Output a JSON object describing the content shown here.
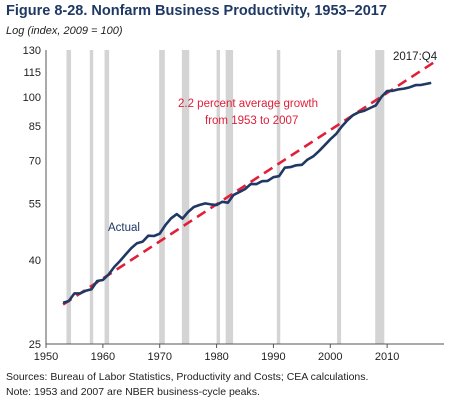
{
  "header": {
    "title": "Figure 8-28. Nonfarm Business Productivity, 1953–2017",
    "subtitle": "Log (index, 2009 = 100)"
  },
  "notes": {
    "source": "Sources: Bureau of Labor Statistics, Productivity and Costs; CEA calculations.",
    "note": "Note: 1953 and 2007 are NBER business-cycle peaks."
  },
  "chart_data": {
    "type": "line",
    "title": "Figure 8-28. Nonfarm Business Productivity, 1953–2017",
    "ylabel": "Log (index, 2009 = 100)",
    "xlabel": "",
    "yscale": "log",
    "xlim": [
      1950,
      2020
    ],
    "ylim": [
      25,
      130
    ],
    "x_ticks": [
      1950,
      1960,
      1970,
      1980,
      1990,
      2000,
      2010
    ],
    "y_ticks": [
      25,
      40,
      55,
      70,
      85,
      100,
      115,
      130
    ],
    "grid": false,
    "colors": {
      "actual": "#1f3864",
      "trend": "#e0203a",
      "recession": "#d4d4d4"
    },
    "recessions": [
      [
        1953.6,
        1954.4
      ],
      [
        1957.7,
        1958.3
      ],
      [
        1960.3,
        1961.1
      ],
      [
        1969.9,
        1970.9
      ],
      [
        1973.9,
        1975.2
      ],
      [
        1980.0,
        1980.6
      ],
      [
        1981.6,
        1982.9
      ],
      [
        1990.6,
        1991.2
      ],
      [
        2001.2,
        2001.9
      ],
      [
        2007.9,
        2009.5
      ]
    ],
    "series": [
      {
        "name": "Actual",
        "x": [
          1953.0,
          1954.0,
          1955.0,
          1956.0,
          1957.0,
          1958.0,
          1959.0,
          1960.0,
          1961.0,
          1962.0,
          1963.0,
          1964.0,
          1965.0,
          1966.0,
          1967.0,
          1968.0,
          1969.0,
          1970.0,
          1971.0,
          1972.0,
          1973.0,
          1974.0,
          1975.0,
          1976.0,
          1977.0,
          1978.0,
          1979.0,
          1980.0,
          1981.0,
          1982.0,
          1983.0,
          1984.0,
          1985.0,
          1986.0,
          1987.0,
          1988.0,
          1989.0,
          1990.0,
          1991.0,
          1992.0,
          1993.0,
          1994.0,
          1995.0,
          1996.0,
          1997.0,
          1998.0,
          1999.0,
          2000.0,
          2001.0,
          2002.0,
          2003.0,
          2004.0,
          2005.0,
          2006.0,
          2007.0,
          2008.0,
          2009.0,
          2010.0,
          2011.0,
          2012.0,
          2013.0,
          2014.0,
          2015.0,
          2016.0,
          2017.75
        ],
        "y": [
          31.5,
          31.8,
          33.2,
          33.2,
          33.7,
          34.0,
          35.6,
          35.8,
          36.9,
          38.5,
          39.8,
          41.3,
          42.8,
          44.0,
          44.4,
          45.9,
          45.8,
          46.4,
          48.7,
          50.6,
          51.8,
          50.5,
          52.4,
          53.9,
          54.5,
          55.0,
          54.7,
          54.5,
          55.5,
          55.2,
          57.7,
          58.6,
          59.6,
          61.3,
          61.3,
          62.3,
          62.4,
          63.7,
          64.1,
          67.2,
          67.4,
          68.1,
          68.3,
          70.3,
          71.6,
          73.7,
          76.2,
          78.8,
          81.1,
          84.6,
          87.6,
          90.2,
          91.7,
          92.5,
          93.9,
          95.3,
          100.0,
          103.3,
          103.4,
          104.2,
          104.7,
          105.5,
          106.8,
          106.9,
          108.1
        ]
      },
      {
        "name": "2.2 percent average growth from 1953 to 2007",
        "x": [
          1953,
          2018.2
        ],
        "y": [
          31.2,
          121.3
        ]
      }
    ],
    "annotations": [
      {
        "name": "label-actual",
        "text": "Actual"
      },
      {
        "name": "label-trend-line1",
        "text": "2.2 percent average growth"
      },
      {
        "name": "label-trend-line2",
        "text": "from 1953 to 2007"
      },
      {
        "name": "label-last-quarter",
        "text": "2017:Q4"
      }
    ]
  }
}
